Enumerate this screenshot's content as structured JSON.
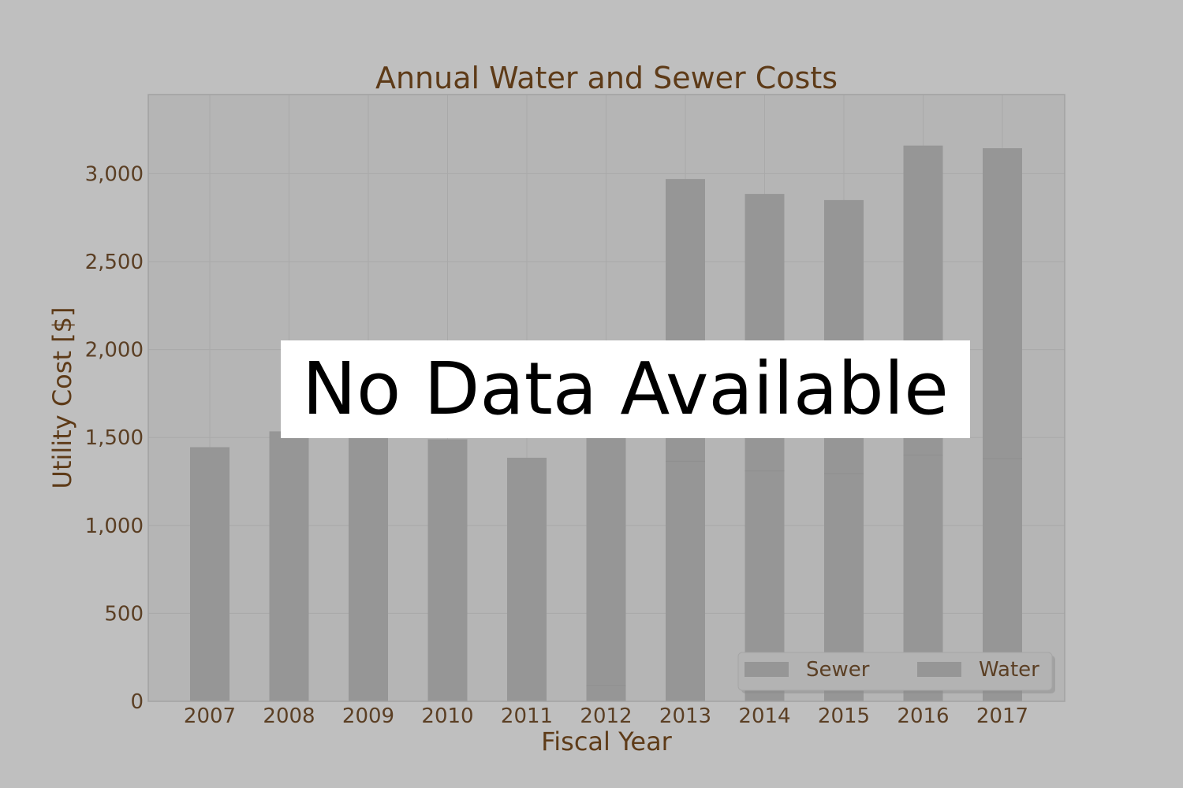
{
  "overlay": {
    "text": "No Data Available"
  },
  "colors": {
    "background": "#bfbfbf",
    "plot_area": "#b5b5b5",
    "bar": "#969696",
    "grid": "#a9a9a9",
    "text": "#5e3b18"
  },
  "chart_data": {
    "type": "bar",
    "stacked": true,
    "title": "Annual Water and Sewer Costs",
    "xlabel": "Fiscal Year",
    "ylabel": "Utility Cost [$]",
    "categories": [
      "2007",
      "2008",
      "2009",
      "2010",
      "2011",
      "2012",
      "2013",
      "2014",
      "2015",
      "2016",
      "2017"
    ],
    "series": [
      {
        "name": "Sewer",
        "values": [
          0,
          0,
          0,
          0,
          0,
          90,
          1365,
          1310,
          1295,
          1400,
          1380
        ]
      },
      {
        "name": "Water",
        "values": [
          1445,
          1535,
          1525,
          1490,
          1385,
          1510,
          1605,
          1575,
          1555,
          1760,
          1765
        ]
      }
    ],
    "ylim": [
      0,
      3450
    ],
    "yticks": [
      0,
      500,
      1000,
      1500,
      2000,
      2500,
      3000
    ],
    "ytick_labels": [
      "0",
      "500",
      "1,000",
      "1,500",
      "2,000",
      "2,500",
      "3,000"
    ],
    "grid": true,
    "legend_position": "bottom-right"
  }
}
